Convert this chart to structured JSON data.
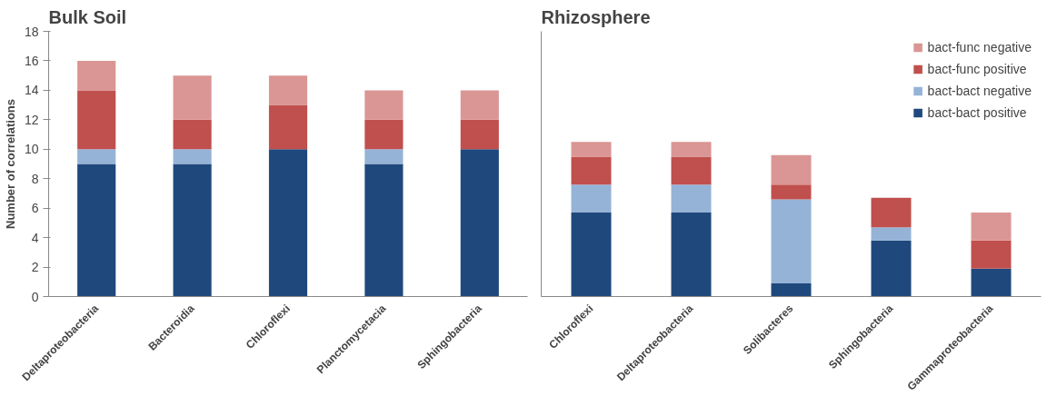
{
  "chart_data": [
    {
      "type": "bar",
      "title": "Bulk Soil",
      "ylabel": "Number of correlations",
      "stacked": true,
      "grid": false,
      "legend": false,
      "categories": [
        "Deltaproteobacteria",
        "Bacteroidia",
        "Chloroflexi",
        "Planctomycetacia",
        "Sphingobacteria"
      ],
      "ylim": [
        0,
        18
      ],
      "yticks": [
        0,
        2,
        4,
        6,
        8,
        10,
        12,
        14,
        16,
        18
      ],
      "series": [
        {
          "color": "#1f497d",
          "values": [
            9,
            9,
            10,
            9,
            10
          ]
        },
        {
          "color": "#95b3d7",
          "values": [
            1,
            1,
            0,
            1,
            0
          ]
        },
        {
          "color": "#c0504d",
          "values": [
            4,
            2,
            3,
            2,
            2
          ]
        },
        {
          "color": "#da9694",
          "values": [
            2,
            3,
            2,
            2,
            2
          ]
        }
      ]
    },
    {
      "type": "bar",
      "title": "Rhizosphere",
      "stacked": true,
      "grid": false,
      "legend": "top right",
      "tick_labels": "x",
      "categories": [
        "Chloroflexi",
        "Deltaproteobacteria",
        "Solibacteres",
        "Sphingobacteria",
        "Gammaproteobacteria"
      ],
      "ylim": [
        0,
        18
      ],
      "series": [
        {
          "name": "bact-bact positive",
          "color": "#1f497d",
          "values": [
            5.7,
            5.7,
            0.9,
            3.8,
            1.9
          ]
        },
        {
          "name": "bact-bact negative",
          "color": "#95b3d7",
          "values": [
            1.9,
            1.9,
            5.7,
            0.9,
            0
          ]
        },
        {
          "name": "bact-func positive",
          "color": "#c0504d",
          "values": [
            1.9,
            1.9,
            1.0,
            2.0,
            1.9
          ]
        },
        {
          "name": "bact-func negative",
          "color": "#da9694",
          "values": [
            1.0,
            1.0,
            2.0,
            0,
            1.9
          ]
        }
      ]
    }
  ]
}
